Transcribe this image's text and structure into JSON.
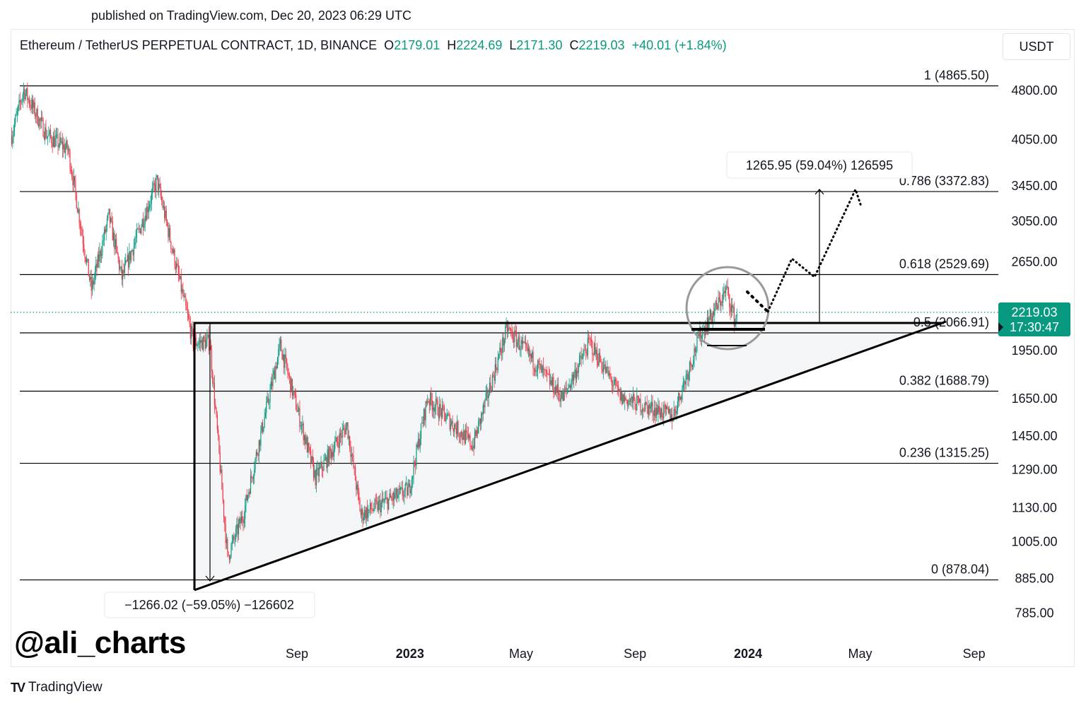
{
  "published": "published on TradingView.com, Dec 20, 2023 06:29 UTC",
  "legend": {
    "symbol": "Ethereum / TetherUS PERPETUAL CONTRACT, 1D, BINANCE",
    "o_label": "O",
    "o": "2179.01",
    "h_label": "H",
    "h": "2224.69",
    "l_label": "L",
    "l": "2171.30",
    "c_label": "C",
    "c": "2219.03",
    "change": "+40.01 (+1.84%)"
  },
  "currency": "USDT",
  "watermark": "@ali_charts",
  "brand": "TradingView",
  "colors": {
    "up": "#089981",
    "down": "#f23645",
    "last_price": "#089981"
  },
  "chart_data": {
    "type": "candlestick",
    "title": "Ethereum / TetherUS PERPETUAL CONTRACT, 1D, BINANCE",
    "y_scale": "log",
    "y_ticks": [
      "4800.00",
      "4050.00",
      "3450.00",
      "3050.00",
      "2650.00",
      "1950.00",
      "1650.00",
      "1450.00",
      "1290.00",
      "1130.00",
      "1005.00",
      "885.00",
      "785.00"
    ],
    "x_ticks": [
      {
        "label": "Sep",
        "date": "2022-09-01",
        "bold": false
      },
      {
        "label": "2023",
        "date": "2023-01-01",
        "bold": true
      },
      {
        "label": "May",
        "date": "2023-05-01",
        "bold": false
      },
      {
        "label": "Sep",
        "date": "2023-09-01",
        "bold": false
      },
      {
        "label": "2024",
        "date": "2024-01-01",
        "bold": true
      },
      {
        "label": "May",
        "date": "2024-05-01",
        "bold": false
      },
      {
        "label": "Sep",
        "date": "2024-09-01",
        "bold": false
      }
    ],
    "price_path_approx": [
      [
        "2021-10-28",
        4100
      ],
      [
        "2021-11-10",
        4800
      ],
      [
        "2021-12-05",
        4100
      ],
      [
        "2021-12-28",
        3900
      ],
      [
        "2022-01-22",
        2400
      ],
      [
        "2022-02-10",
        3100
      ],
      [
        "2022-02-24",
        2500
      ],
      [
        "2022-04-03",
        3500
      ],
      [
        "2022-05-12",
        2000
      ],
      [
        "2022-05-30",
        2000
      ],
      [
        "2022-06-18",
        950
      ],
      [
        "2022-07-05",
        1100
      ],
      [
        "2022-08-14",
        1980
      ],
      [
        "2022-09-21",
        1250
      ],
      [
        "2022-10-25",
        1500
      ],
      [
        "2022-11-09",
        1100
      ],
      [
        "2022-12-31",
        1200
      ],
      [
        "2023-01-20",
        1650
      ],
      [
        "2023-03-10",
        1400
      ],
      [
        "2023-04-16",
        2100
      ],
      [
        "2023-06-15",
        1650
      ],
      [
        "2023-07-14",
        2000
      ],
      [
        "2023-08-17",
        1650
      ],
      [
        "2023-10-12",
        1550
      ],
      [
        "2023-11-10",
        2050
      ],
      [
        "2023-12-09",
        2400
      ],
      [
        "2023-12-18",
        2150
      ],
      [
        "2023-12-20",
        2219.03
      ]
    ],
    "last_price": {
      "value": "2219.03",
      "countdown": "17:30:47"
    },
    "fib_levels": [
      {
        "ratio": 1,
        "price": 4865.5,
        "label": "1 (4865.50)"
      },
      {
        "ratio": 0.786,
        "price": 3372.83,
        "label": "0.786 (3372.83)"
      },
      {
        "ratio": 0.618,
        "price": 2529.69,
        "label": "0.618 (2529.69)"
      },
      {
        "ratio": 0.5,
        "price": 2066.91,
        "label": "0.5 (2066.91)"
      },
      {
        "ratio": 0.382,
        "price": 1688.79,
        "label": "0.382 (1688.79)"
      },
      {
        "ratio": 0.236,
        "price": 1315.25,
        "label": "0.236 (1315.25)"
      },
      {
        "ratio": 0,
        "price": 878.04,
        "label": "0 (878.04)"
      }
    ],
    "annotations": {
      "measure_up": "1265.95 (59.04%) 126595",
      "measure_down": "−1266.02 (−59.05%) −126602",
      "pattern": "ascending triangle"
    }
  }
}
